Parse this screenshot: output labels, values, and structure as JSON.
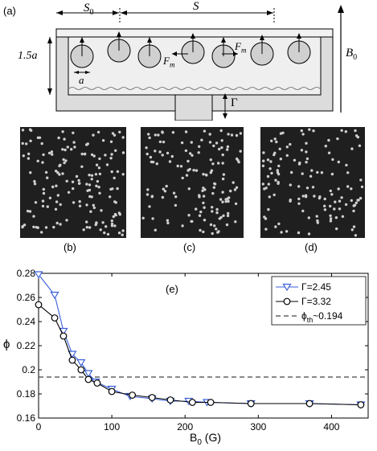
{
  "panel_a": {
    "label": "(a)",
    "s0": "S",
    "s0_sub": "0",
    "s": "S",
    "height_label": "1.5a",
    "a_label": "a",
    "fm_label": "F",
    "fm_sub": "m",
    "b0_label": "B",
    "b0_sub": "0",
    "gamma_label": "Γ"
  },
  "photos": [
    {
      "label": "(b)",
      "particles": 160
    },
    {
      "label": "(c)",
      "particles": 140
    },
    {
      "label": "(d)",
      "particles": 130
    }
  ],
  "chart_data": {
    "type": "line",
    "panel_label": "(e)",
    "xlabel": "B",
    "xlabel_sub": "0",
    "xlabel_unit": " (G)",
    "ylabel": "ϕ",
    "xlim": [
      0,
      450
    ],
    "ylim": [
      0.16,
      0.28
    ],
    "xticks": [
      "0",
      "100",
      "200",
      "300",
      "400"
    ],
    "yticks": [
      "0.16",
      "0.18",
      "0.2",
      "0.22",
      "0.24",
      "0.26",
      "0.28"
    ],
    "series": [
      {
        "name": "Γ=2.45",
        "color": "#3b5fd9",
        "marker": "triangle-down",
        "x": [
          0,
          22,
          34,
          46,
          58,
          68,
          78,
          100,
          125,
          155,
          180,
          205,
          230,
          290,
          370,
          440
        ],
        "y": [
          0.279,
          0.262,
          0.232,
          0.213,
          0.206,
          0.197,
          0.19,
          0.184,
          0.178,
          0.176,
          0.174,
          0.174,
          0.173,
          0.172,
          0.172,
          0.171
        ]
      },
      {
        "name": "Γ=3.32",
        "color": "#000000",
        "marker": "circle",
        "x": [
          0,
          22,
          34,
          46,
          58,
          68,
          80,
          100,
          128,
          155,
          180,
          210,
          235,
          290,
          370,
          440
        ],
        "y": [
          0.254,
          0.243,
          0.228,
          0.208,
          0.2,
          0.192,
          0.189,
          0.182,
          0.179,
          0.177,
          0.175,
          0.173,
          0.173,
          0.172,
          0.172,
          0.171
        ]
      }
    ],
    "threshold": {
      "name": "ϕ",
      "name_sub": "th",
      "name_tail": "~0.194",
      "value": 0.194
    }
  }
}
